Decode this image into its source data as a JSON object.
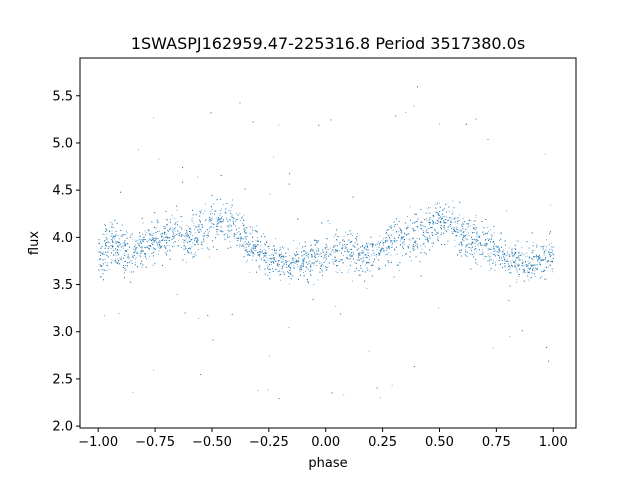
{
  "chart_data": {
    "type": "scatter",
    "title": "1SWASPJ162959.47-225316.8 Period 3517380.0s",
    "xlabel": "phase",
    "ylabel": "flux",
    "xlim": [
      -1.08,
      1.1
    ],
    "ylim": [
      1.98,
      5.9
    ],
    "x_ticks": [
      -1.0,
      -0.75,
      -0.5,
      -0.25,
      0.0,
      0.25,
      0.5,
      0.75,
      1.0
    ],
    "x_tick_labels": [
      "−1.00",
      "−0.75",
      "−0.50",
      "−0.25",
      "0.00",
      "0.25",
      "0.50",
      "0.75",
      "1.00"
    ],
    "y_ticks": [
      2.0,
      2.5,
      3.0,
      3.5,
      4.0,
      4.5,
      5.0,
      5.5
    ],
    "y_tick_labels": [
      "2.0",
      "2.5",
      "3.0",
      "3.5",
      "4.0",
      "4.5",
      "5.0",
      "5.5"
    ],
    "grid": false,
    "legend": "none",
    "marker_color": "#1f77b4",
    "series": [
      {
        "x": [
          -1.0,
          -0.95,
          -0.9,
          -0.85,
          -0.8,
          -0.75,
          -0.7,
          -0.65,
          -0.6,
          -0.55,
          -0.5,
          -0.45,
          -0.4,
          -0.35,
          -0.3,
          -0.25,
          -0.2,
          -0.15,
          -0.1,
          -0.05,
          0.0,
          0.05,
          0.1,
          0.15,
          0.2,
          0.25,
          0.3,
          0.35,
          0.4,
          0.45,
          0.5,
          0.55,
          0.6,
          0.65,
          0.7,
          0.75,
          0.8,
          0.85,
          0.9,
          0.95,
          1.0
        ],
        "y": [
          3.78,
          3.95,
          3.88,
          3.82,
          3.9,
          3.97,
          4.02,
          4.05,
          3.98,
          4.1,
          4.15,
          4.18,
          4.1,
          3.95,
          3.86,
          3.78,
          3.75,
          3.73,
          3.75,
          3.8,
          3.82,
          3.85,
          3.88,
          3.78,
          3.82,
          3.92,
          3.97,
          4.0,
          4.02,
          4.12,
          4.18,
          4.15,
          4.05,
          3.98,
          3.92,
          3.85,
          3.8,
          3.75,
          3.72,
          3.78,
          3.8
        ],
        "spread": [
          0.28,
          0.32,
          0.3,
          0.3,
          0.28,
          0.3,
          0.3,
          0.3,
          0.3,
          0.3,
          0.3,
          0.3,
          0.3,
          0.28,
          0.26,
          0.25,
          0.25,
          0.25,
          0.26,
          0.28,
          0.3,
          0.3,
          0.3,
          0.28,
          0.28,
          0.28,
          0.3,
          0.3,
          0.3,
          0.3,
          0.32,
          0.3,
          0.3,
          0.3,
          0.28,
          0.27,
          0.26,
          0.25,
          0.25,
          0.26,
          0.27
        ]
      }
    ]
  }
}
